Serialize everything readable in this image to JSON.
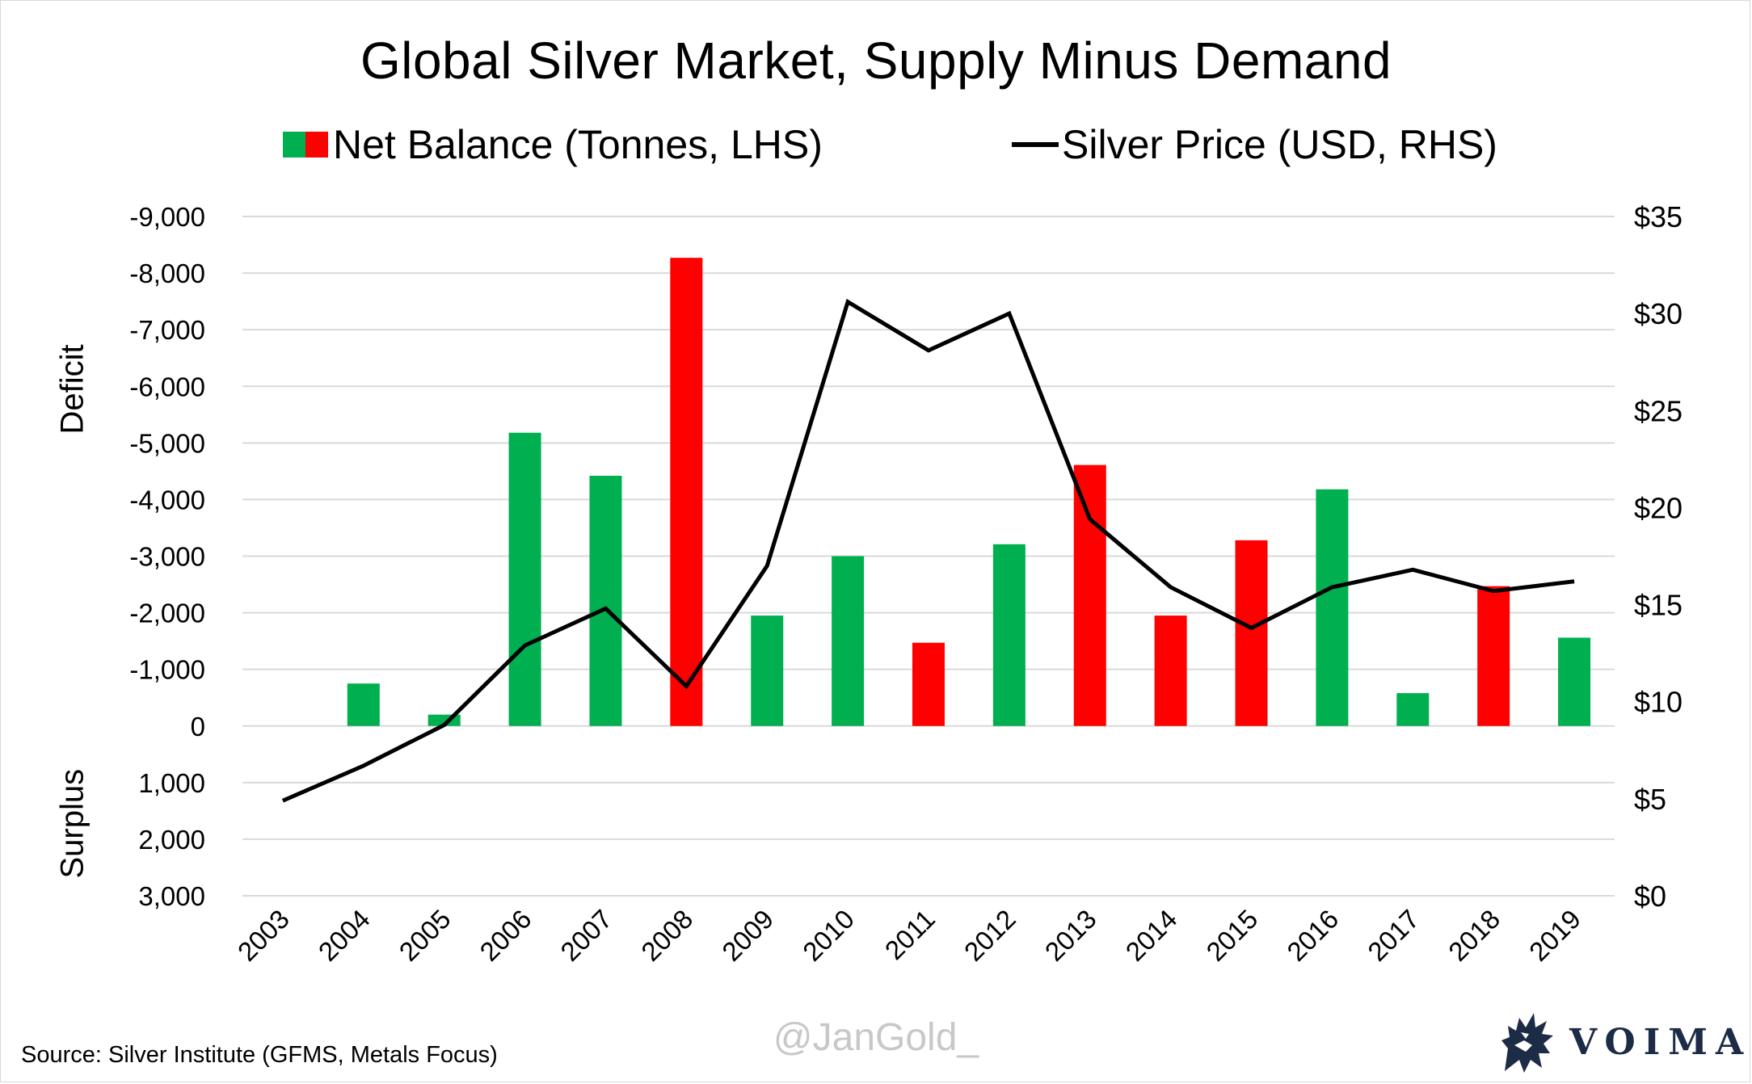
{
  "title": "Global Silver Market, Supply Minus Demand",
  "legend": {
    "net_balance": "Net Balance (Tonnes, LHS)",
    "silver_price": "Silver Price (USD, RHS)"
  },
  "axis_labels": {
    "deficit": "Deficit",
    "surplus": "Surplus"
  },
  "source": "Source: Silver Institute (GFMS, Metals Focus)",
  "watermark": "@JanGold_",
  "brand": "VOIMA",
  "colors": {
    "green": "#00b050",
    "red": "#ff0000",
    "line": "#000000",
    "grid": "#d9d9d9",
    "brand": "#1c2b46"
  },
  "chart_data": {
    "type": "bar",
    "title": "Global Silver Market, Supply Minus Demand",
    "categories": [
      "2003",
      "2004",
      "2005",
      "2006",
      "2007",
      "2008",
      "2009",
      "2010",
      "2011",
      "2012",
      "2013",
      "2014",
      "2015",
      "2016",
      "2017",
      "2018",
      "2019"
    ],
    "series": [
      {
        "name": "Net Balance (Tonnes, LHS)",
        "type": "bar",
        "axis": "left",
        "values": [
          0,
          -750,
          -200,
          -5180,
          -4420,
          -8270,
          -1950,
          -3000,
          -1470,
          -3210,
          -4610,
          -1950,
          -3280,
          -4180,
          -580,
          -2470,
          -1560
        ],
        "bar_colors": [
          "green",
          "green",
          "green",
          "green",
          "green",
          "red",
          "green",
          "green",
          "red",
          "green",
          "red",
          "red",
          "red",
          "green",
          "green",
          "red",
          "green"
        ]
      },
      {
        "name": "Silver Price (USD, RHS)",
        "type": "line",
        "axis": "right",
        "values": [
          4.9,
          6.7,
          8.8,
          12.9,
          14.8,
          10.8,
          17.0,
          30.6,
          28.1,
          30.0,
          19.4,
          15.9,
          13.8,
          15.9,
          16.8,
          15.7,
          16.2
        ]
      }
    ],
    "left_axis": {
      "ylim": [
        3000,
        -9000
      ],
      "ticks": [
        "-9,000",
        "-8,000",
        "-7,000",
        "-6,000",
        "-5,000",
        "-4,000",
        "-3,000",
        "-2,000",
        "-1,000",
        "0",
        "1,000",
        "2,000",
        "3,000"
      ]
    },
    "right_axis": {
      "ylim": [
        0,
        35
      ],
      "ticks": [
        "$35",
        "$30",
        "$25",
        "$20",
        "$15",
        "$10",
        "$5",
        "$0"
      ]
    },
    "grid": true,
    "legend_position": "top"
  }
}
